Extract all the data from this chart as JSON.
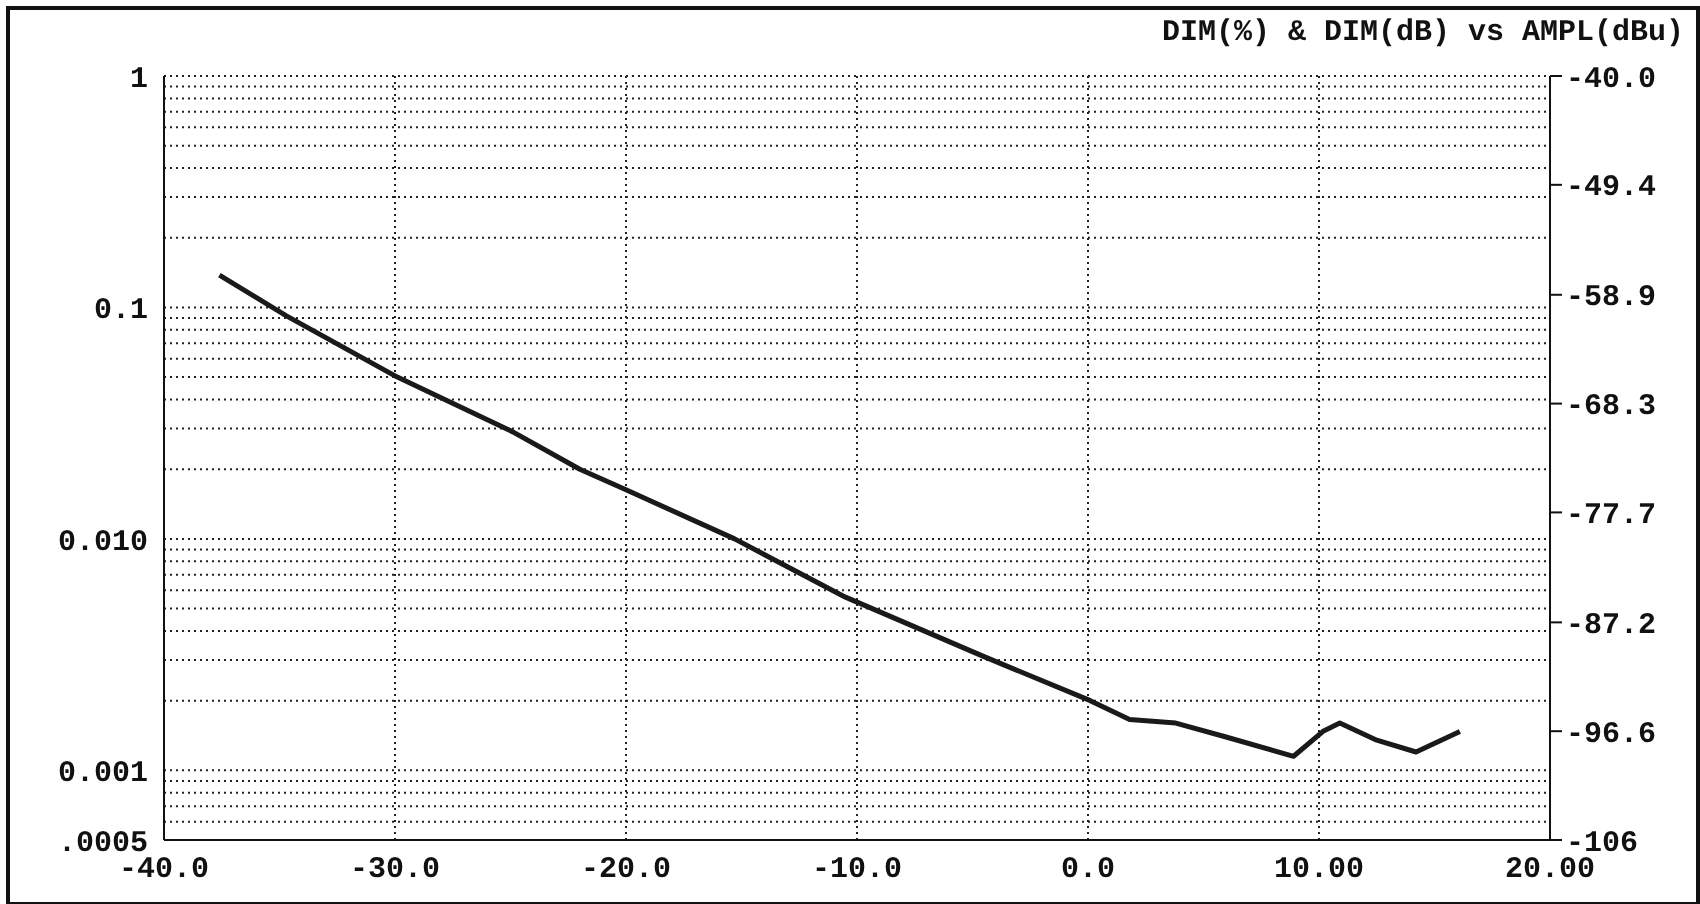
{
  "chart_data": {
    "type": "line",
    "title": "DIM(%) & DIM(dB) vs AMPL(dBu)",
    "x": [
      -37.6,
      -34.7,
      -29.9,
      -24.9,
      -22.0,
      -20.0,
      -15.3,
      -10.5,
      -4.5,
      0.1,
      1.8,
      3.8,
      5.9,
      8.9,
      10.2,
      10.9,
      12.5,
      14.2,
      16.1
    ],
    "series": [
      {
        "color": "#1a1a1a",
        "values": [
          0.138,
          0.092,
          0.05,
          0.029,
          0.02,
          0.0163,
          0.01,
          0.0056,
          0.0031,
          0.002,
          0.00166,
          0.0016,
          0.0014,
          0.00115,
          0.00148,
          0.0016,
          0.00135,
          0.0012,
          0.00147
        ]
      }
    ],
    "xlim": [
      -40,
      20
    ],
    "xticks": [
      {
        "value": -40,
        "label": "-40.0"
      },
      {
        "value": -30,
        "label": "-30.0"
      },
      {
        "value": -20,
        "label": "-20.0"
      },
      {
        "value": -10,
        "label": "-10.0"
      },
      {
        "value": 0,
        "label": "0.0"
      },
      {
        "value": 10,
        "label": "10.00"
      },
      {
        "value": 20,
        "label": "20.00"
      }
    ],
    "ylim": [
      0.0005,
      1
    ],
    "yticks": [
      {
        "value": 0.0005,
        "label": ".0005"
      },
      {
        "value": 0.0006,
        "label": null
      },
      {
        "value": 0.0007,
        "label": null
      },
      {
        "value": 0.0008,
        "label": null
      },
      {
        "value": 0.0009,
        "label": null
      },
      {
        "value": 0.001,
        "label": "0.001"
      },
      {
        "value": 0.002,
        "label": null
      },
      {
        "value": 0.003,
        "label": null
      },
      {
        "value": 0.004,
        "label": null
      },
      {
        "value": 0.005,
        "label": null
      },
      {
        "value": 0.006,
        "label": null
      },
      {
        "value": 0.007,
        "label": null
      },
      {
        "value": 0.008,
        "label": null
      },
      {
        "value": 0.009,
        "label": null
      },
      {
        "value": 0.01,
        "label": "0.010"
      },
      {
        "value": 0.02,
        "label": null
      },
      {
        "value": 0.03,
        "label": null
      },
      {
        "value": 0.04,
        "label": null
      },
      {
        "value": 0.05,
        "label": null
      },
      {
        "value": 0.06,
        "label": null
      },
      {
        "value": 0.07,
        "label": null
      },
      {
        "value": 0.08,
        "label": null
      },
      {
        "value": 0.09,
        "label": null
      },
      {
        "value": 0.1,
        "label": "0.1"
      },
      {
        "value": 0.2,
        "label": null
      },
      {
        "value": 0.3,
        "label": null
      },
      {
        "value": 0.4,
        "label": null
      },
      {
        "value": 0.5,
        "label": null
      },
      {
        "value": 0.6,
        "label": null
      },
      {
        "value": 0.7,
        "label": null
      },
      {
        "value": 0.8,
        "label": null
      },
      {
        "value": 0.9,
        "label": null
      },
      {
        "value": 1,
        "label": "1"
      }
    ],
    "y2lim": [
      -106,
      -40
    ],
    "y2ticks": [
      -106,
      {
        "value": -96.6,
        "label": "-96.6"
      },
      {
        "value": -87.2,
        "label": "-87.2"
      },
      {
        "value": -77.7,
        "label": "-77.7"
      },
      {
        "value": -68.3,
        "label": "-68.3"
      },
      {
        "value": -58.9,
        "label": "-58.9"
      },
      {
        "value": -49.4,
        "label": "-49.4"
      },
      {
        "value": -40,
        "label": "-40.0"
      }
    ],
    "log": true,
    "grid": true,
    "marker": "none",
    "line_style": "solid",
    "legend": false
  }
}
